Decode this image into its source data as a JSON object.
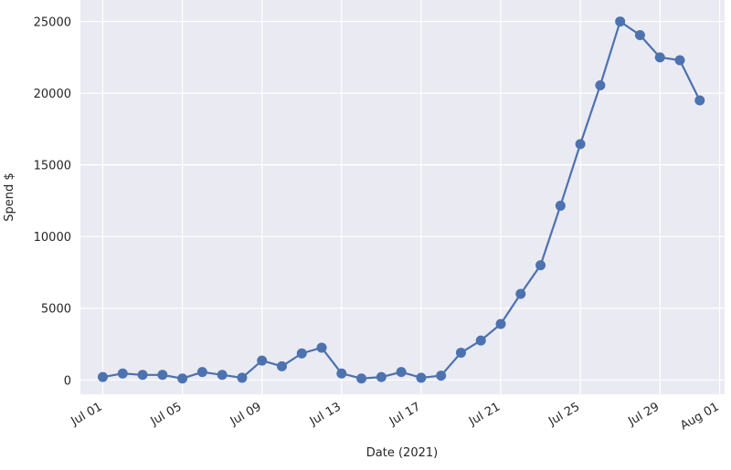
{
  "chart_data": {
    "type": "line",
    "xlabel": "Date (2021)",
    "ylabel": "Spend $",
    "x": [
      "2021-07-01",
      "2021-07-02",
      "2021-07-03",
      "2021-07-04",
      "2021-07-05",
      "2021-07-06",
      "2021-07-07",
      "2021-07-08",
      "2021-07-09",
      "2021-07-10",
      "2021-07-11",
      "2021-07-12",
      "2021-07-13",
      "2021-07-14",
      "2021-07-15",
      "2021-07-16",
      "2021-07-17",
      "2021-07-18",
      "2021-07-19",
      "2021-07-20",
      "2021-07-21",
      "2021-07-22",
      "2021-07-23",
      "2021-07-24",
      "2021-07-25",
      "2021-07-26",
      "2021-07-27",
      "2021-07-28",
      "2021-07-29",
      "2021-07-30",
      "2021-07-31"
    ],
    "series": [
      {
        "name": "Spend",
        "color": "#4c72b0",
        "values": [
          200,
          450,
          350,
          350,
          100,
          550,
          350,
          150,
          1350,
          950,
          1850,
          2250,
          450,
          100,
          200,
          550,
          150,
          300,
          1900,
          2750,
          3900,
          6000,
          8000,
          12150,
          16450,
          20550,
          25000,
          24050,
          22500,
          22300,
          19500
        ]
      }
    ],
    "xlim": [
      "2021-06-29T21:00Z",
      "2021-08-01T06:00Z"
    ],
    "xticks": [
      {
        "value": "2021-07-01",
        "label": "Jul 01"
      },
      {
        "value": "2021-07-05",
        "label": "Jul 05"
      },
      {
        "value": "2021-07-09",
        "label": "Jul 09"
      },
      {
        "value": "2021-07-13",
        "label": "Jul 13"
      },
      {
        "value": "2021-07-17",
        "label": "Jul 17"
      },
      {
        "value": "2021-07-21",
        "label": "Jul 21"
      },
      {
        "value": "2021-07-25",
        "label": "Jul 25"
      },
      {
        "value": "2021-07-29",
        "label": "Jul 29"
      },
      {
        "value": "2021-08-01",
        "label": "Aug 01"
      }
    ],
    "ylim": [
      -1000,
      26500
    ],
    "yticks": [
      0,
      5000,
      10000,
      15000,
      20000,
      25000
    ],
    "grid": true,
    "background": "#eaeaf2"
  }
}
